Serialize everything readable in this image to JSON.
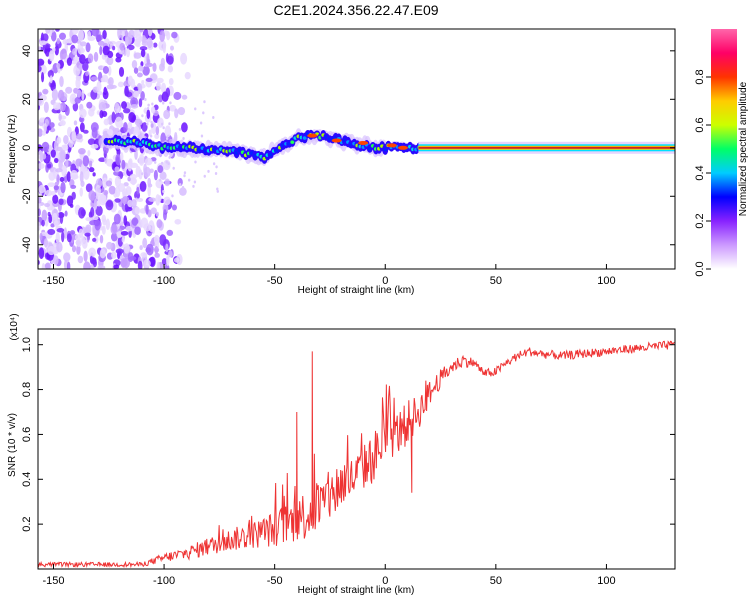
{
  "title": "C2E1.2024.356.22.47.E09",
  "colors": {
    "snr_line": "#ee3333",
    "axis": "#000000",
    "carrier": "#cc2222"
  },
  "chart_data": [
    {
      "type": "heatmap",
      "panel": "top",
      "xlabel": "Height of straight line (km)",
      "ylabel": "Frequency (Hz)",
      "xlim": [
        -157,
        131
      ],
      "ylim": [
        -50,
        49
      ],
      "x_ticks": [
        -150,
        -100,
        -50,
        0,
        50,
        100
      ],
      "y_ticks": [
        -40,
        -20,
        0,
        20,
        40
      ],
      "colorbar": {
        "label": "Normalized spectral amplitude",
        "range": [
          0.0,
          1.0
        ],
        "ticks": [
          0.0,
          0.2,
          0.4,
          0.6,
          0.8
        ],
        "colormap": [
          "#ffffff",
          "#cc99ff",
          "#8822ff",
          "#0000ff",
          "#00ccff",
          "#00ff66",
          "#ccff00",
          "#ffcc00",
          "#ff3300",
          "#ff0066",
          "#ff66aa"
        ]
      },
      "carrier_trace": {
        "x": [
          -125,
          -110,
          -100,
          -90,
          -80,
          -70,
          -60,
          -55,
          -50,
          -45,
          -40,
          -35,
          -30,
          -25,
          -20,
          -15,
          -10,
          -5,
          0,
          5,
          10,
          20,
          40,
          60,
          80,
          100,
          131
        ],
        "freq": [
          3,
          2,
          0,
          0,
          -1,
          -1,
          -3,
          -4,
          -1,
          1,
          4,
          5,
          5,
          4,
          3,
          2,
          1,
          0,
          0,
          1,
          0,
          0,
          0,
          0,
          0,
          0,
          0
        ]
      },
      "noise_region_x": [
        -157,
        -108
      ]
    },
    {
      "type": "line",
      "panel": "bottom",
      "xlabel": "Height of straight line (km)",
      "ylabel": "SNR (10 * v/v)",
      "y_multiplier": "(x10⁴)",
      "xlim": [
        -157,
        131
      ],
      "ylim": [
        0,
        1.07
      ],
      "x_ticks": [
        -150,
        -100,
        -50,
        0,
        50,
        100
      ],
      "y_ticks": [
        0.2,
        0.4,
        0.6,
        0.8,
        1.0
      ],
      "series": [
        {
          "x": [
            -157,
            -130,
            -110,
            -100,
            -90,
            -80,
            -70,
            -60,
            -50,
            -40,
            -35,
            -30,
            -25,
            -20,
            -15,
            -10,
            -5,
            0,
            5,
            10,
            15,
            20,
            25,
            30,
            35,
            40,
            45,
            50,
            55,
            60,
            65,
            70,
            80,
            90,
            100,
            110,
            120,
            131
          ],
          "values": [
            0.02,
            0.02,
            0.02,
            0.05,
            0.07,
            0.1,
            0.13,
            0.15,
            0.18,
            0.22,
            0.25,
            0.28,
            0.32,
            0.38,
            0.4,
            0.45,
            0.5,
            0.58,
            0.6,
            0.65,
            0.7,
            0.78,
            0.85,
            0.9,
            0.93,
            0.92,
            0.87,
            0.88,
            0.92,
            0.95,
            0.97,
            0.96,
            0.95,
            0.96,
            0.97,
            0.98,
            0.99,
            1.0
          ],
          "spread": [
            0.01,
            0.01,
            0.01,
            0.02,
            0.03,
            0.04,
            0.05,
            0.06,
            0.08,
            0.1,
            0.12,
            0.12,
            0.12,
            0.12,
            0.1,
            0.1,
            0.12,
            0.1,
            0.1,
            0.1,
            0.08,
            0.06,
            0.04,
            0.03,
            0.03,
            0.02,
            0.02,
            0.02,
            0.02,
            0.02,
            0.02,
            0.02,
            0.02,
            0.02,
            0.02,
            0.02,
            0.02,
            0.02
          ],
          "spikes": [
            {
              "x": -40,
              "value": 0.7
            },
            {
              "x": -33,
              "value": 0.97
            },
            {
              "x": 12,
              "value": 0.34
            }
          ]
        }
      ]
    }
  ]
}
